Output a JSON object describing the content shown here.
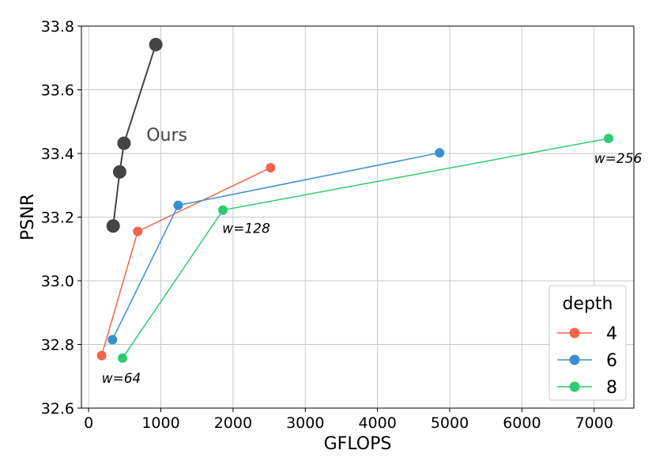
{
  "chart_data": {
    "type": "line",
    "xlabel": "GFLOPS",
    "ylabel": "PSNR",
    "xlim": [
      -100,
      7550
    ],
    "ylim": [
      32.6,
      33.8
    ],
    "xticks": [
      0,
      1000,
      2000,
      3000,
      4000,
      5000,
      6000,
      7000
    ],
    "yticks": [
      32.6,
      32.8,
      33.0,
      33.2,
      33.4,
      33.6,
      33.8
    ],
    "grid": true,
    "legend": {
      "title": "depth",
      "placement": "lower-right"
    },
    "series": [
      {
        "name": "4",
        "color": "#f2644b",
        "points": [
          [
            180,
            32.765
          ],
          [
            680,
            33.155
          ],
          [
            2520,
            33.355
          ]
        ]
      },
      {
        "name": "6",
        "color": "#3791d0",
        "points": [
          [
            330,
            32.815
          ],
          [
            1240,
            33.237
          ],
          [
            4860,
            33.402
          ]
        ]
      },
      {
        "name": "8",
        "color": "#2ecc71",
        "points": [
          [
            470,
            32.757
          ],
          [
            1860,
            33.222
          ],
          [
            7200,
            33.447
          ]
        ]
      }
    ],
    "ours": {
      "label": "Ours",
      "color": "#444444",
      "points": [
        [
          340,
          33.172
        ],
        [
          430,
          33.342
        ],
        [
          490,
          33.432
        ],
        [
          930,
          33.742
        ]
      ]
    },
    "annotations": [
      {
        "text": "w=64",
        "x": 180,
        "y": 32.68
      },
      {
        "text": "w=128",
        "x": 1850,
        "y": 33.15
      },
      {
        "text": "w=256",
        "x": 7000,
        "y": 33.37
      }
    ]
  }
}
